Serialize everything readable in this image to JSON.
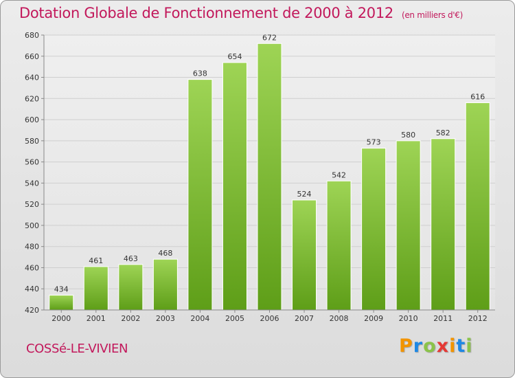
{
  "title": "Dotation Globale de Fonctionnement de 2000 à 2012",
  "unit_note": "(en milliers d'€)",
  "commune": "COSSé-LE-VIVIEN",
  "logo": {
    "text": "Proxiti",
    "letters": [
      {
        "ch": "P",
        "color": "#f29400"
      },
      {
        "ch": "r",
        "color": "#1e88e5"
      },
      {
        "ch": "o",
        "color": "#8bc34a"
      },
      {
        "ch": "x",
        "color": "#e53935"
      },
      {
        "ch": "i",
        "color": "#f29400"
      },
      {
        "ch": "t",
        "color": "#1e88e5"
      },
      {
        "ch": "i",
        "color": "#8bc34a"
      }
    ]
  },
  "colors": {
    "title": "#c2185b",
    "bar_top": "#9ed455",
    "bar_bottom": "#5e9e18"
  },
  "chart_data": {
    "type": "bar",
    "title": "Dotation Globale de Fonctionnement de 2000 à 2012",
    "xlabel": "",
    "ylabel": "",
    "categories": [
      "2000",
      "2001",
      "2002",
      "2003",
      "2004",
      "2005",
      "2006",
      "2007",
      "2008",
      "2009",
      "2010",
      "2011",
      "2012"
    ],
    "values": [
      434,
      461,
      463,
      468,
      638,
      654,
      672,
      524,
      542,
      573,
      580,
      582,
      616
    ],
    "ylim": [
      420,
      680
    ],
    "yticks": [
      420,
      440,
      460,
      480,
      500,
      520,
      540,
      560,
      580,
      600,
      620,
      640,
      660,
      680
    ],
    "grid": true,
    "legend": "none"
  }
}
